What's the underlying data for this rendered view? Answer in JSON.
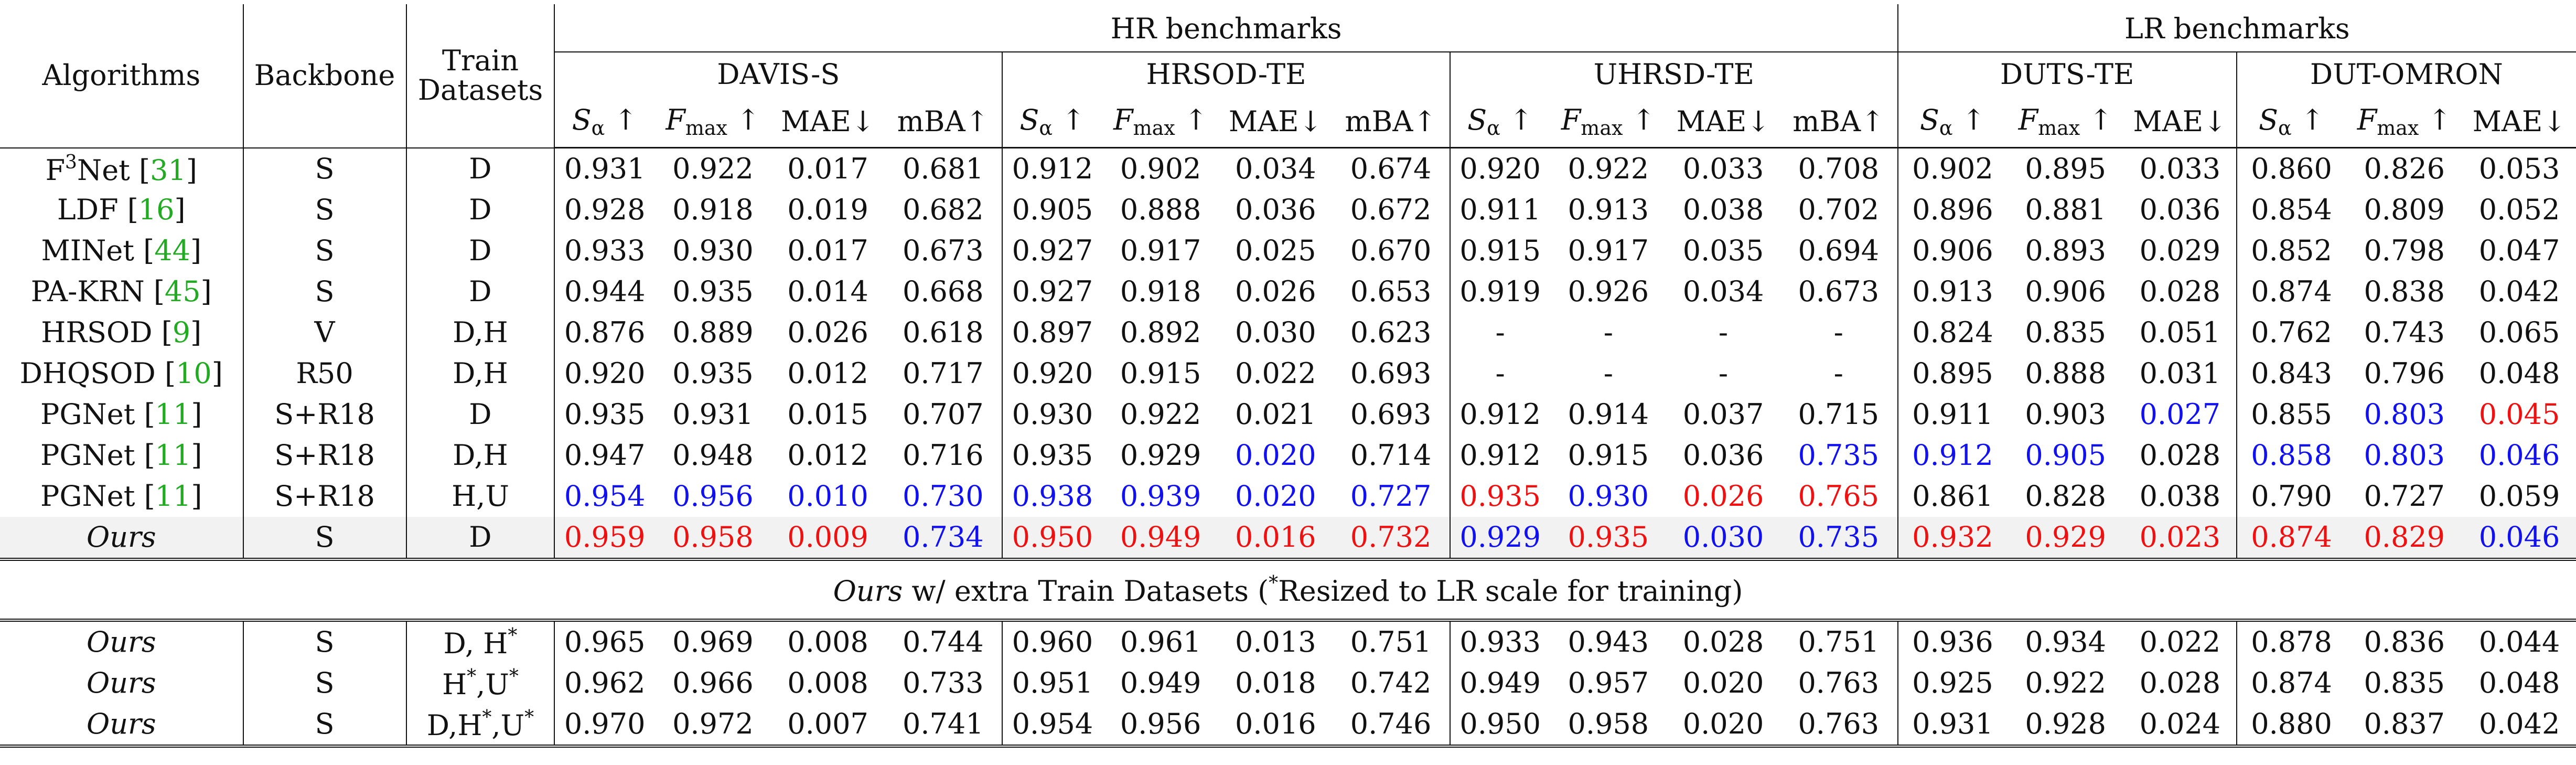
{
  "header": {
    "algorithms": "Algorithms",
    "backbone": "Backbone",
    "train_datasets_line1": "Train",
    "train_datasets_line2": "Datasets",
    "hr_group": "HR benchmarks",
    "lr_group": "LR benchmarks",
    "datasets": [
      "DAVIS-S",
      "HRSOD-TE",
      "UHRSD-TE",
      "DUTS-TE",
      "DUT-OMRON"
    ],
    "metric_s_base": "S",
    "metric_s_sub": "α",
    "metric_f_base": "F",
    "metric_f_sub": "max",
    "metric_up": "↑",
    "metric_mae": "MAE↓",
    "metric_mba": "mBA↑"
  },
  "rows": [
    {
      "name": "F",
      "name_sup": "3",
      "name_rest": "Net",
      "ref": "31",
      "backbone": "S",
      "train": "D",
      "values": [
        "0.931",
        "0.922",
        "0.017",
        "0.681",
        "0.912",
        "0.902",
        "0.034",
        "0.674",
        "0.920",
        "0.922",
        "0.033",
        "0.708",
        "0.902",
        "0.895",
        "0.033",
        "0.860",
        "0.826",
        "0.053"
      ],
      "colors": [
        "",
        "",
        "",
        "",
        "",
        "",
        "",
        "",
        "",
        "",
        "",
        "",
        "",
        "",
        "",
        "",
        "",
        ""
      ]
    },
    {
      "name": "LDF",
      "ref": "16",
      "backbone": "S",
      "train": "D",
      "values": [
        "0.928",
        "0.918",
        "0.019",
        "0.682",
        "0.905",
        "0.888",
        "0.036",
        "0.672",
        "0.911",
        "0.913",
        "0.038",
        "0.702",
        "0.896",
        "0.881",
        "0.036",
        "0.854",
        "0.809",
        "0.052"
      ],
      "colors": [
        "",
        "",
        "",
        "",
        "",
        "",
        "",
        "",
        "",
        "",
        "",
        "",
        "",
        "",
        "",
        "",
        "",
        ""
      ]
    },
    {
      "name": "MINet",
      "ref": "44",
      "backbone": "S",
      "train": "D",
      "values": [
        "0.933",
        "0.930",
        "0.017",
        "0.673",
        "0.927",
        "0.917",
        "0.025",
        "0.670",
        "0.915",
        "0.917",
        "0.035",
        "0.694",
        "0.906",
        "0.893",
        "0.029",
        "0.852",
        "0.798",
        "0.047"
      ],
      "colors": [
        "",
        "",
        "",
        "",
        "",
        "",
        "",
        "",
        "",
        "",
        "",
        "",
        "",
        "",
        "",
        "",
        "",
        ""
      ]
    },
    {
      "name": "PA-KRN",
      "ref": "45",
      "backbone": "S",
      "train": "D",
      "values": [
        "0.944",
        "0.935",
        "0.014",
        "0.668",
        "0.927",
        "0.918",
        "0.026",
        "0.653",
        "0.919",
        "0.926",
        "0.034",
        "0.673",
        "0.913",
        "0.906",
        "0.028",
        "0.874",
        "0.838",
        "0.042"
      ],
      "colors": [
        "",
        "",
        "",
        "",
        "",
        "",
        "",
        "",
        "",
        "",
        "",
        "",
        "",
        "",
        "",
        "",
        "",
        ""
      ]
    },
    {
      "name": "HRSOD",
      "ref": "9",
      "backbone": "V",
      "train": "D,H",
      "values": [
        "0.876",
        "0.889",
        "0.026",
        "0.618",
        "0.897",
        "0.892",
        "0.030",
        "0.623",
        "-",
        "-",
        "-",
        "-",
        "0.824",
        "0.835",
        "0.051",
        "0.762",
        "0.743",
        "0.065"
      ],
      "colors": [
        "",
        "",
        "",
        "",
        "",
        "",
        "",
        "",
        "",
        "",
        "",
        "",
        "",
        "",
        "",
        "",
        "",
        ""
      ]
    },
    {
      "name": "DHQSOD",
      "ref": "10",
      "backbone": "R50",
      "train": "D,H",
      "values": [
        "0.920",
        "0.935",
        "0.012",
        "0.717",
        "0.920",
        "0.915",
        "0.022",
        "0.693",
        "-",
        "-",
        "-",
        "-",
        "0.895",
        "0.888",
        "0.031",
        "0.843",
        "0.796",
        "0.048"
      ],
      "colors": [
        "",
        "",
        "",
        "",
        "",
        "",
        "",
        "",
        "",
        "",
        "",
        "",
        "",
        "",
        "",
        "",
        "",
        ""
      ]
    },
    {
      "name": "PGNet",
      "ref": "11",
      "backbone": "S+R18",
      "train": "D",
      "values": [
        "0.935",
        "0.931",
        "0.015",
        "0.707",
        "0.930",
        "0.922",
        "0.021",
        "0.693",
        "0.912",
        "0.914",
        "0.037",
        "0.715",
        "0.911",
        "0.903",
        "0.027",
        "0.855",
        "0.803",
        "0.045"
      ],
      "colors": [
        "",
        "",
        "",
        "",
        "",
        "",
        "",
        "",
        "",
        "",
        "",
        "",
        "",
        "",
        "blue",
        "",
        "blue",
        "red"
      ]
    },
    {
      "name": "PGNet",
      "ref": "11",
      "backbone": "S+R18",
      "train": "D,H",
      "values": [
        "0.947",
        "0.948",
        "0.012",
        "0.716",
        "0.935",
        "0.929",
        "0.020",
        "0.714",
        "0.912",
        "0.915",
        "0.036",
        "0.735",
        "0.912",
        "0.905",
        "0.028",
        "0.858",
        "0.803",
        "0.046"
      ],
      "colors": [
        "",
        "",
        "",
        "",
        "",
        "",
        "blue",
        "",
        "",
        "",
        "",
        "blue",
        "blue",
        "blue",
        "",
        "blue",
        "blue",
        "blue"
      ]
    },
    {
      "name": "PGNet",
      "ref": "11",
      "backbone": "S+R18",
      "train": "H,U",
      "values": [
        "0.954",
        "0.956",
        "0.010",
        "0.730",
        "0.938",
        "0.939",
        "0.020",
        "0.727",
        "0.935",
        "0.930",
        "0.026",
        "0.765",
        "0.861",
        "0.828",
        "0.038",
        "0.790",
        "0.727",
        "0.059"
      ],
      "colors": [
        "blue",
        "blue",
        "blue",
        "blue",
        "blue",
        "blue",
        "blue",
        "blue",
        "red",
        "blue",
        "red",
        "red",
        "",
        "",
        "",
        "",
        "",
        ""
      ]
    },
    {
      "name": "Ours",
      "italic": true,
      "backbone": "S",
      "train": "D",
      "shaded": true,
      "values": [
        "0.959",
        "0.958",
        "0.009",
        "0.734",
        "0.950",
        "0.949",
        "0.016",
        "0.732",
        "0.929",
        "0.935",
        "0.030",
        "0.735",
        "0.932",
        "0.929",
        "0.023",
        "0.874",
        "0.829",
        "0.046"
      ],
      "colors": [
        "red",
        "red",
        "red",
        "blue",
        "red",
        "red",
        "red",
        "red",
        "blue",
        "red",
        "blue",
        "blue",
        "red",
        "red",
        "red",
        "red",
        "red",
        "blue"
      ]
    }
  ],
  "caption": {
    "ours": "Ours",
    "text": " w/ extra Train Datasets (",
    "star": "*",
    "text2": "Resized to LR scale for training)"
  },
  "extra_rows": [
    {
      "name": "Ours",
      "backbone": "S",
      "train_html": [
        "D, H",
        "*",
        ""
      ],
      "values": [
        "0.965",
        "0.969",
        "0.008",
        "0.744",
        "0.960",
        "0.961",
        "0.013",
        "0.751",
        "0.933",
        "0.943",
        "0.028",
        "0.751",
        "0.936",
        "0.934",
        "0.022",
        "0.878",
        "0.836",
        "0.044"
      ]
    },
    {
      "name": "Ours",
      "backbone": "S",
      "train_html": [
        "H",
        "*",
        ",U",
        "*"
      ],
      "values": [
        "0.962",
        "0.966",
        "0.008",
        "0.733",
        "0.951",
        "0.949",
        "0.018",
        "0.742",
        "0.949",
        "0.957",
        "0.020",
        "0.763",
        "0.925",
        "0.922",
        "0.028",
        "0.874",
        "0.835",
        "0.048"
      ]
    },
    {
      "name": "Ours",
      "backbone": "S",
      "train_html": [
        "D,H",
        "*",
        ",U",
        "*"
      ],
      "values": [
        "0.970",
        "0.972",
        "0.007",
        "0.741",
        "0.954",
        "0.956",
        "0.016",
        "0.746",
        "0.950",
        "0.958",
        "0.020",
        "0.763",
        "0.931",
        "0.928",
        "0.024",
        "0.880",
        "0.837",
        "0.042"
      ]
    }
  ],
  "colors": {
    "red": "#ee1111",
    "blue": "#1111ee",
    "ref_green": "#22aa22",
    "shade": "#f2f2f2"
  }
}
